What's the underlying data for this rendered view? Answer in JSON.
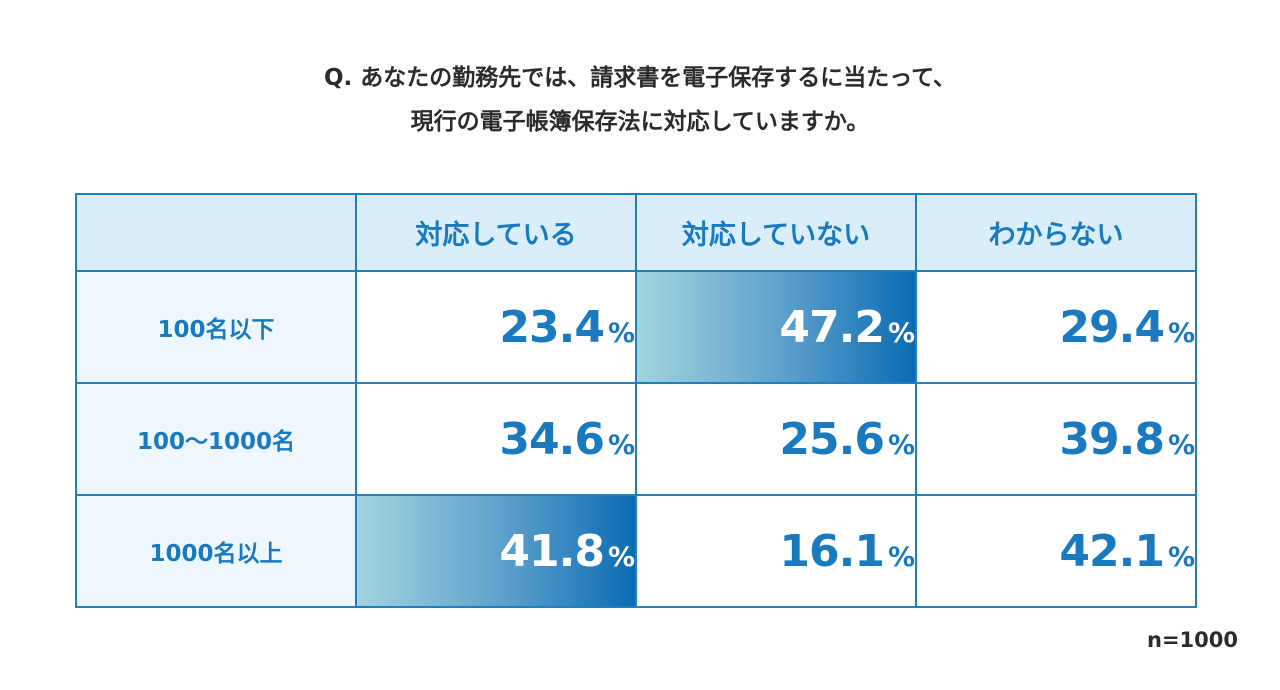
{
  "title": {
    "line1": "Q. あなたの勤務先では、請求書を電子保存するに当たって、",
    "line2": "現行の電子帳簿保存法に対応していますか。"
  },
  "chart_data": {
    "type": "table",
    "columns": [
      "対応している",
      "対応していない",
      "わからない"
    ],
    "rows": [
      {
        "label": "100名以下",
        "values": [
          23.4,
          47.2,
          29.4
        ],
        "highlight": 1
      },
      {
        "label": "100〜1000名",
        "values": [
          34.6,
          25.6,
          39.8
        ],
        "highlight": null
      },
      {
        "label": "1000名以上",
        "values": [
          41.8,
          16.1,
          42.1
        ],
        "highlight": 0
      }
    ],
    "unit": "%",
    "highlight_colors": [
      "#a3d4df",
      "#0a6cb3"
    ],
    "accent_color": "#1a7abf"
  },
  "footer": {
    "n": "n=1000"
  },
  "cells": {
    "r0": {
      "c0": "23.4",
      "c1": "47.2",
      "c2": "29.4"
    },
    "r1": {
      "c0": "34.6",
      "c1": "25.6",
      "c2": "39.8"
    },
    "r2": {
      "c0": "41.8",
      "c1": "16.1",
      "c2": "42.1"
    }
  }
}
